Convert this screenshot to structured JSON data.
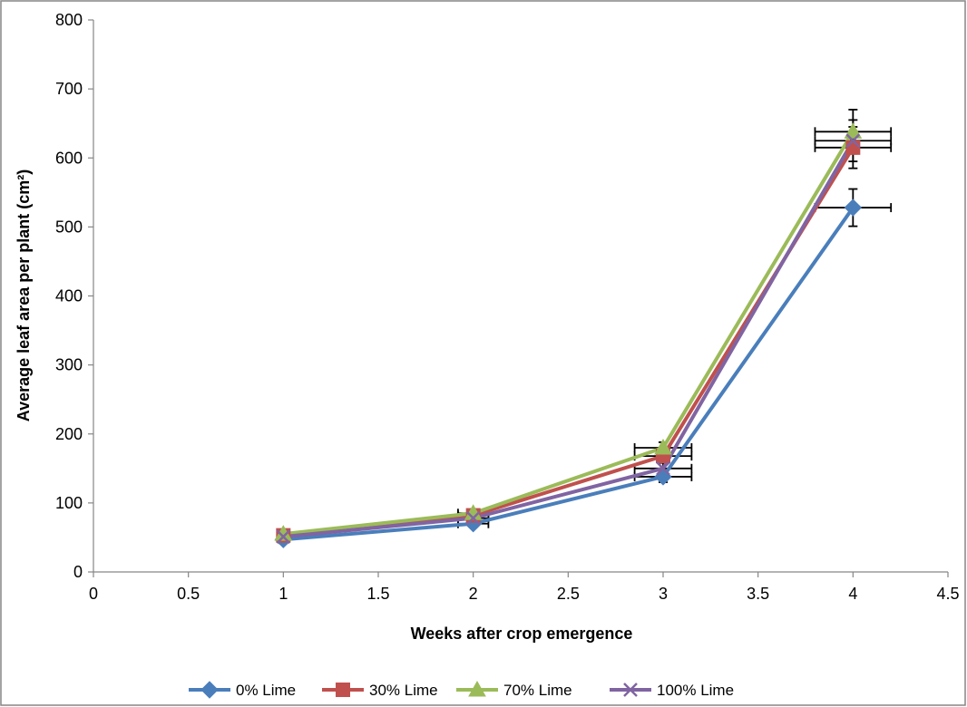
{
  "chart_data": {
    "type": "line",
    "title": "",
    "xlabel": "Weeks after  crop emergence",
    "ylabel": "Average leaf area per plant (cm²)",
    "xlim": [
      0,
      4.5
    ],
    "ylim": [
      0,
      800
    ],
    "x_ticks": [
      0,
      0.5,
      1,
      1.5,
      2,
      2.5,
      3,
      3.5,
      4,
      4.5
    ],
    "x_tick_labels": [
      "0",
      "0.5",
      "1",
      "1.5",
      "2",
      "2.5",
      "3",
      "3.5",
      "4",
      "4.5"
    ],
    "y_ticks": [
      0,
      100,
      200,
      300,
      400,
      500,
      600,
      700,
      800
    ],
    "y_tick_labels": [
      "0",
      "100",
      "200",
      "300",
      "400",
      "500",
      "600",
      "700",
      "800"
    ],
    "grid": false,
    "legend_position": "bottom",
    "x": [
      1,
      2,
      3,
      4
    ],
    "series": [
      {
        "name": "0% Lime",
        "color": "#4a7ebb",
        "marker": "diamond",
        "values": [
          47,
          70,
          138,
          528
        ],
        "y_err": [
          5,
          5,
          8,
          27
        ],
        "x_err": [
          0.02,
          0.08,
          0.15,
          0.2
        ]
      },
      {
        "name": "30% Lime",
        "color": "#c0504d",
        "marker": "square",
        "values": [
          53,
          82,
          168,
          615
        ],
        "y_err": [
          5,
          5,
          8,
          30
        ],
        "x_err": [
          0.02,
          0.08,
          0.15,
          0.2
        ]
      },
      {
        "name": "70% Lime",
        "color": "#9bbb59",
        "marker": "triangle",
        "values": [
          55,
          85,
          180,
          638
        ],
        "y_err": [
          5,
          5,
          8,
          32
        ],
        "x_err": [
          0.02,
          0.08,
          0.15,
          0.2
        ]
      },
      {
        "name": "100% Lime",
        "color": "#8064a2",
        "marker": "x",
        "values": [
          51,
          78,
          150,
          625
        ],
        "y_err": [
          5,
          5,
          8,
          30
        ],
        "x_err": [
          0.02,
          0.08,
          0.15,
          0.2
        ]
      }
    ]
  }
}
